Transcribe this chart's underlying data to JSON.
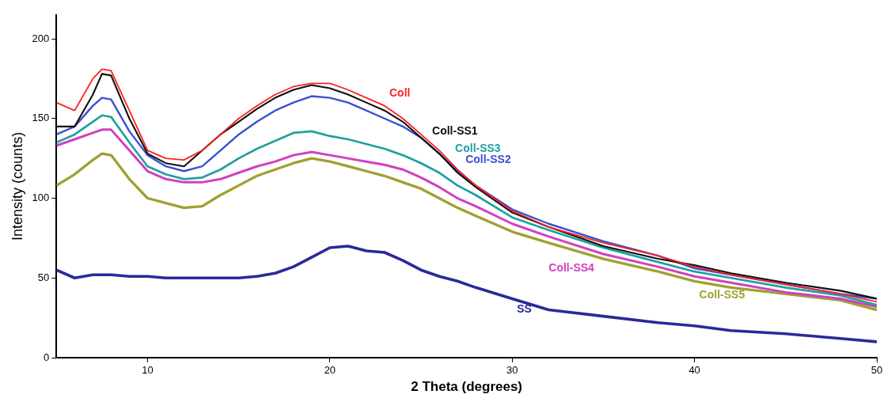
{
  "chart_data": {
    "type": "line",
    "xlabel": "2 Theta (degrees)",
    "ylabel": "Intensity (counts)",
    "x": [
      5,
      6,
      7,
      7.5,
      8,
      9,
      10,
      11,
      12,
      13,
      14,
      15,
      16,
      17,
      18,
      19,
      20,
      21,
      22,
      23,
      24,
      25,
      26,
      27,
      28,
      30,
      32,
      35,
      38,
      40,
      42,
      45,
      48,
      50
    ],
    "xlim": [
      5,
      50
    ],
    "xticks": [
      10,
      20,
      30,
      40,
      50
    ],
    "ylim": [
      0,
      215
    ],
    "yticks": [
      0,
      50,
      100,
      150,
      200
    ],
    "grid": false,
    "legend": false,
    "marker": "none",
    "line_style": "solid",
    "series": [
      {
        "name": "Coll",
        "color": "#ff2020",
        "values": [
          160,
          155,
          175,
          181,
          180,
          155,
          130,
          125,
          124,
          130,
          140,
          150,
          158,
          165,
          170,
          172,
          172,
          168,
          163,
          158,
          150,
          140,
          130,
          118,
          108,
          92,
          82,
          72,
          64,
          57,
          52,
          46,
          40,
          35
        ]
      },
      {
        "name": "Coll-SS1",
        "color": "#101010",
        "values": [
          145,
          145,
          165,
          178,
          177,
          150,
          128,
          122,
          120,
          130,
          140,
          148,
          156,
          163,
          168,
          171,
          169,
          165,
          160,
          155,
          148,
          138,
          128,
          116,
          107,
          91,
          82,
          70,
          62,
          58,
          53,
          47,
          42,
          37
        ]
      },
      {
        "name": "Coll-SS2",
        "color": "#3a50d0",
        "values": [
          140,
          145,
          158,
          163,
          162,
          142,
          127,
          120,
          117,
          120,
          130,
          140,
          148,
          155,
          160,
          164,
          163,
          160,
          155,
          150,
          145,
          138,
          128,
          117,
          108,
          93,
          84,
          73,
          64,
          56,
          52,
          46,
          40,
          37
        ]
      },
      {
        "name": "Coll-SS3",
        "color": "#20a0a0",
        "values": [
          135,
          140,
          148,
          152,
          151,
          135,
          120,
          115,
          112,
          113,
          118,
          125,
          131,
          136,
          141,
          142,
          139,
          137,
          134,
          131,
          127,
          122,
          116,
          108,
          102,
          88,
          80,
          69,
          60,
          54,
          50,
          44,
          39,
          33
        ]
      },
      {
        "name": "Coll-SS4",
        "color": "#d040c0",
        "values": [
          133,
          137,
          141,
          143,
          143,
          130,
          117,
          112,
          110,
          110,
          112,
          116,
          120,
          123,
          127,
          129,
          127,
          125,
          123,
          121,
          118,
          113,
          107,
          100,
          95,
          84,
          76,
          65,
          57,
          51,
          47,
          41,
          37,
          32
        ]
      },
      {
        "name": "Coll-SS5",
        "color": "#a0a030",
        "values": [
          108,
          115,
          124,
          128,
          127,
          112,
          100,
          97,
          94,
          95,
          102,
          108,
          114,
          118,
          122,
          125,
          123,
          120,
          117,
          114,
          110,
          106,
          100,
          94,
          89,
          79,
          72,
          62,
          54,
          48,
          44,
          40,
          36,
          30
        ]
      },
      {
        "name": "SS",
        "color": "#2a2a9a",
        "values": [
          55,
          50,
          52,
          52,
          52,
          51,
          51,
          50,
          50,
          50,
          50,
          50,
          51,
          53,
          57,
          63,
          69,
          70,
          67,
          66,
          61,
          55,
          51,
          48,
          44,
          37,
          30,
          26,
          22,
          20,
          17,
          15,
          12,
          10
        ]
      }
    ]
  }
}
